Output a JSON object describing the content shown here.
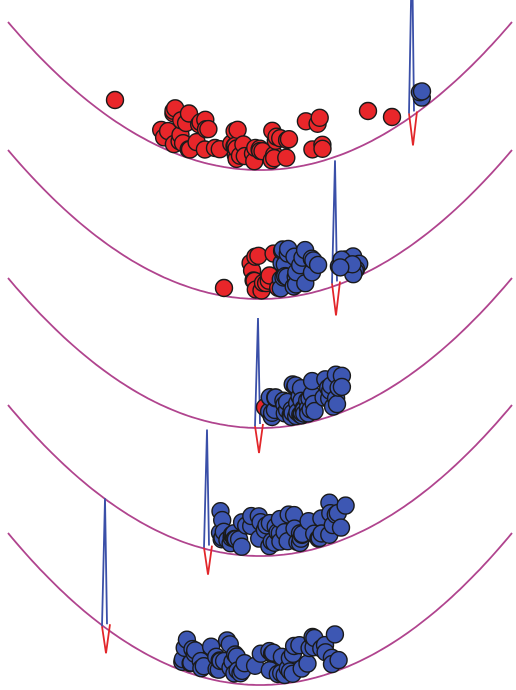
{
  "colors": {
    "well": "#b0448e",
    "spike_up": "#3a4fa8",
    "spike_down": "#e2262a",
    "ball_red": "#e8262a",
    "ball_blue": "#3d57b3",
    "ball_stroke": "#1a1a1a",
    "background": "#ffffff"
  },
  "panels": [
    {
      "index": 1,
      "red_count": 55,
      "blue_count": 3
    },
    {
      "index": 2,
      "red_count": 14,
      "blue_count": 24
    },
    {
      "index": 3,
      "red_count": 1,
      "blue_count": 56
    },
    {
      "index": 4,
      "red_count": 0,
      "blue_count": 60
    },
    {
      "index": 5,
      "red_count": 0,
      "blue_count": 60
    }
  ]
}
